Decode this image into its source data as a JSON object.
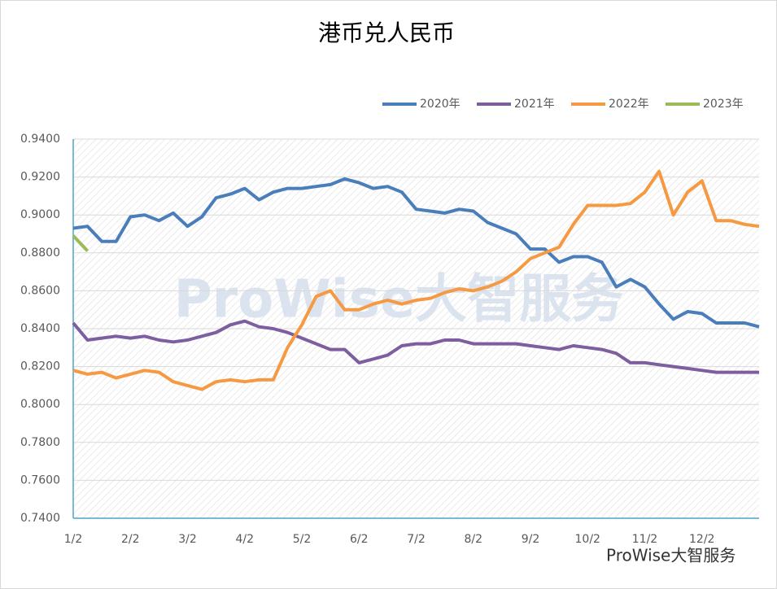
{
  "chart_data": {
    "type": "line",
    "title": "港币兑人民币",
    "watermark": "ProWise大智服务",
    "footer": "ProWise大智服务",
    "categories": [
      "1/2",
      null,
      null,
      null,
      "2/2",
      null,
      null,
      null,
      "3/2",
      null,
      null,
      null,
      "4/2",
      null,
      null,
      null,
      "5/2",
      null,
      null,
      null,
      "6/2",
      null,
      null,
      null,
      "7/2",
      null,
      null,
      null,
      "8/2",
      null,
      null,
      null,
      "9/2",
      null,
      null,
      null,
      "10/2",
      null,
      null,
      null,
      "11/2",
      null,
      null,
      null,
      "12/2",
      null,
      null,
      null,
      null
    ],
    "series": [
      {
        "name": "2020年",
        "color": "#4a7ebb",
        "values": [
          0.893,
          0.894,
          0.886,
          0.886,
          0.899,
          0.9,
          0.897,
          0.901,
          0.894,
          0.899,
          0.909,
          0.911,
          0.914,
          0.908,
          0.912,
          0.914,
          0.914,
          0.915,
          0.916,
          0.919,
          0.917,
          0.914,
          0.915,
          0.912,
          0.903,
          0.902,
          0.901,
          0.903,
          0.902,
          0.896,
          0.893,
          0.89,
          0.882,
          0.882,
          0.875,
          0.878,
          0.878,
          0.875,
          0.862,
          0.866,
          0.862,
          0.853,
          0.845,
          0.849,
          0.848,
          0.843,
          0.843,
          0.843,
          0.841
        ]
      },
      {
        "name": "2021年",
        "color": "#7d5fa0",
        "values": [
          0.843,
          0.834,
          0.835,
          0.836,
          0.835,
          0.836,
          0.834,
          0.833,
          0.834,
          0.836,
          0.838,
          0.842,
          0.844,
          0.841,
          0.84,
          0.838,
          0.835,
          0.832,
          0.829,
          0.829,
          0.822,
          0.824,
          0.826,
          0.831,
          0.832,
          0.832,
          0.834,
          0.834,
          0.832,
          0.832,
          0.832,
          0.832,
          0.831,
          0.83,
          0.829,
          0.831,
          0.83,
          0.829,
          0.827,
          0.822,
          0.822,
          0.821,
          0.82,
          0.819,
          0.818,
          0.817,
          0.817,
          0.817,
          0.817
        ]
      },
      {
        "name": "2022年",
        "color": "#f59a43",
        "values": [
          0.818,
          0.816,
          0.817,
          0.814,
          0.816,
          0.818,
          0.817,
          0.812,
          0.81,
          0.808,
          0.812,
          0.813,
          0.812,
          0.813,
          0.813,
          0.83,
          0.842,
          0.857,
          0.86,
          0.85,
          0.85,
          0.853,
          0.855,
          0.853,
          0.855,
          0.856,
          0.859,
          0.861,
          0.86,
          0.862,
          0.865,
          0.87,
          0.877,
          0.88,
          0.883,
          0.895,
          0.905,
          0.905,
          0.905,
          0.906,
          0.912,
          0.923,
          0.9,
          0.912,
          0.918,
          0.897,
          0.897,
          0.895,
          0.894
        ]
      },
      {
        "name": "2023年",
        "color": "#9bbb59",
        "values": [
          0.889,
          0.881,
          null,
          null,
          null,
          null,
          null,
          null,
          null,
          null,
          null,
          null,
          null,
          null,
          null,
          null,
          null,
          null,
          null,
          null,
          null,
          null,
          null,
          null,
          null,
          null,
          null,
          null,
          null,
          null,
          null,
          null,
          null,
          null,
          null,
          null,
          null,
          null,
          null,
          null,
          null,
          null,
          null,
          null,
          null,
          null,
          null,
          null,
          null
        ]
      }
    ],
    "ylim": [
      0.74,
      0.94
    ],
    "yticks": [
      {
        "value": 0.74,
        "label": "0.7400"
      },
      {
        "value": 0.76,
        "label": "0.7600"
      },
      {
        "value": 0.78,
        "label": "0.7800"
      },
      {
        "value": 0.8,
        "label": "0.8000"
      },
      {
        "value": 0.82,
        "label": "0.8200"
      },
      {
        "value": 0.84,
        "label": "0.8400"
      },
      {
        "value": 0.86,
        "label": "0.8600"
      },
      {
        "value": 0.88,
        "label": "0.8800"
      },
      {
        "value": 0.9,
        "label": "0.9000"
      },
      {
        "value": 0.92,
        "label": "0.9200"
      },
      {
        "value": 0.94,
        "label": "0.9400"
      }
    ],
    "grid": true,
    "legend": "top-right"
  }
}
